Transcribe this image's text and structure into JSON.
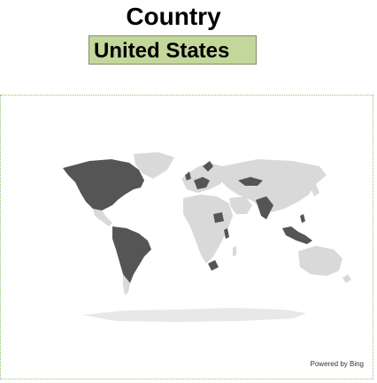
{
  "header": {
    "title": "Country"
  },
  "selector": {
    "value": "United States"
  },
  "map": {
    "attribution": "Powered by Bing",
    "highlight_color": "#555555",
    "base_color": "#d9d9d9",
    "ocean_color": "#ffffff"
  }
}
